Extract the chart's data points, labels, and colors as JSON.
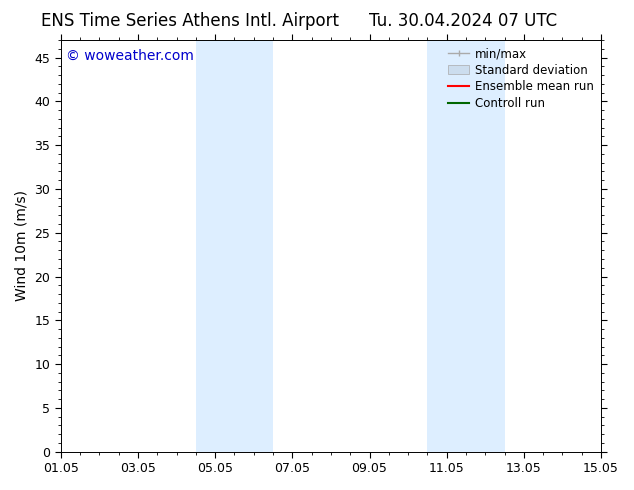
{
  "title_left": "ENS Time Series Athens Intl. Airport",
  "title_right": "Tu. 30.04.2024 07 UTC",
  "ylabel": "Wind 10m (m/s)",
  "watermark": "© woweather.com",
  "watermark_color": "#0000cc",
  "ylim": [
    0,
    47
  ],
  "yticks": [
    0,
    5,
    10,
    15,
    20,
    25,
    30,
    35,
    40,
    45
  ],
  "xtick_labels": [
    "01.05",
    "03.05",
    "05.05",
    "07.05",
    "09.05",
    "11.05",
    "13.05",
    "15.05"
  ],
  "xtick_positions": [
    0,
    2,
    4,
    6,
    8,
    10,
    12,
    14
  ],
  "xlim": [
    0,
    14
  ],
  "background_color": "#ffffff",
  "plot_bg_color": "#ffffff",
  "shade_regions": [
    {
      "x_start": 3.5,
      "x_end": 4.5,
      "color": "#ddeeff"
    },
    {
      "x_start": 4.5,
      "x_end": 5.5,
      "color": "#ddeeff"
    },
    {
      "x_start": 9.5,
      "x_end": 10.5,
      "color": "#ddeeff"
    },
    {
      "x_start": 10.5,
      "x_end": 11.5,
      "color": "#ddeeff"
    }
  ],
  "legend_items": [
    {
      "label": "min/max",
      "color": "#aaaaaa",
      "lw": 1.0,
      "type": "line_with_caps"
    },
    {
      "label": "Standard deviation",
      "color": "#ccddee",
      "lw": 8,
      "type": "thick_line"
    },
    {
      "label": "Ensemble mean run",
      "color": "#ff0000",
      "lw": 1.5,
      "type": "line"
    },
    {
      "label": "Controll run",
      "color": "#006600",
      "lw": 1.5,
      "type": "line"
    }
  ],
  "title_fontsize": 12,
  "axis_fontsize": 10,
  "tick_fontsize": 9,
  "watermark_fontsize": 10,
  "legend_fontsize": 8.5,
  "fig_width": 6.34,
  "fig_height": 4.9,
  "fig_dpi": 100
}
